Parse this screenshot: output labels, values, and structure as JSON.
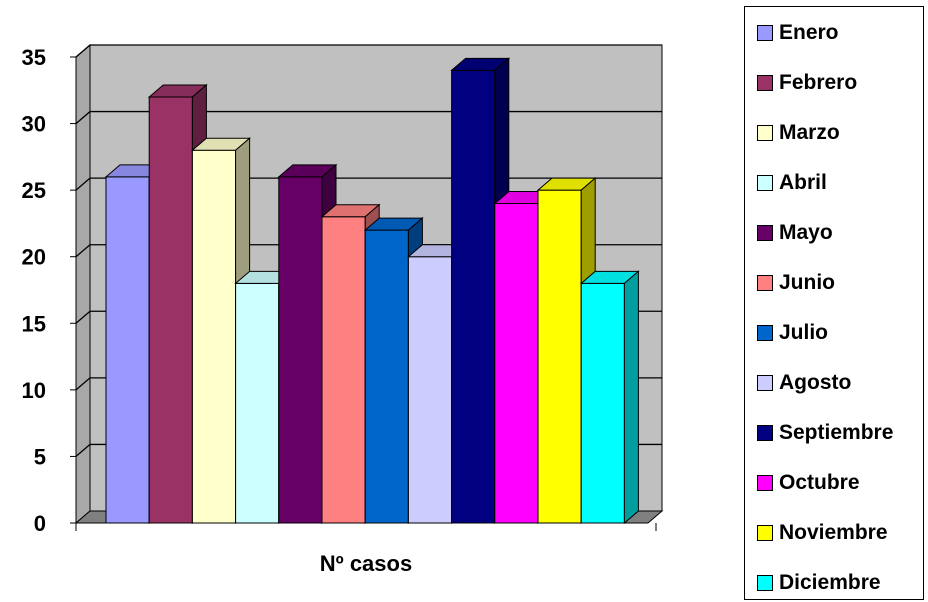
{
  "chart_data": {
    "type": "bar",
    "title": "",
    "xlabel": "Nº casos",
    "ylabel": "",
    "ylim": [
      0,
      35
    ],
    "yticks": [
      "0",
      "5",
      "10",
      "15",
      "20",
      "25",
      "30",
      "35"
    ],
    "grid": true,
    "legend_position": "right",
    "categories": [
      "Nº casos"
    ],
    "series": [
      {
        "name": "Enero",
        "values": [
          26
        ],
        "color": "#9999ff"
      },
      {
        "name": "Febrero",
        "values": [
          32
        ],
        "color": "#993366"
      },
      {
        "name": "Marzo",
        "values": [
          28
        ],
        "color": "#ffffcc"
      },
      {
        "name": "Abril",
        "values": [
          18
        ],
        "color": "#ccffff"
      },
      {
        "name": "Mayo",
        "values": [
          26
        ],
        "color": "#660066"
      },
      {
        "name": "Junio",
        "values": [
          23
        ],
        "color": "#ff8080"
      },
      {
        "name": "Julio",
        "values": [
          22
        ],
        "color": "#0066cc"
      },
      {
        "name": "Agosto",
        "values": [
          20
        ],
        "color": "#ccccff"
      },
      {
        "name": "Septiembre",
        "values": [
          34
        ],
        "color": "#000080"
      },
      {
        "name": "Octubre",
        "values": [
          24
        ],
        "color": "#ff00ff"
      },
      {
        "name": "Noviembre",
        "values": [
          25
        ],
        "color": "#ffff00"
      },
      {
        "name": "Diciembre",
        "values": [
          18
        ],
        "color": "#00ffff"
      }
    ],
    "wall_color": "#c0c0c0",
    "floor_color": "#808080"
  }
}
